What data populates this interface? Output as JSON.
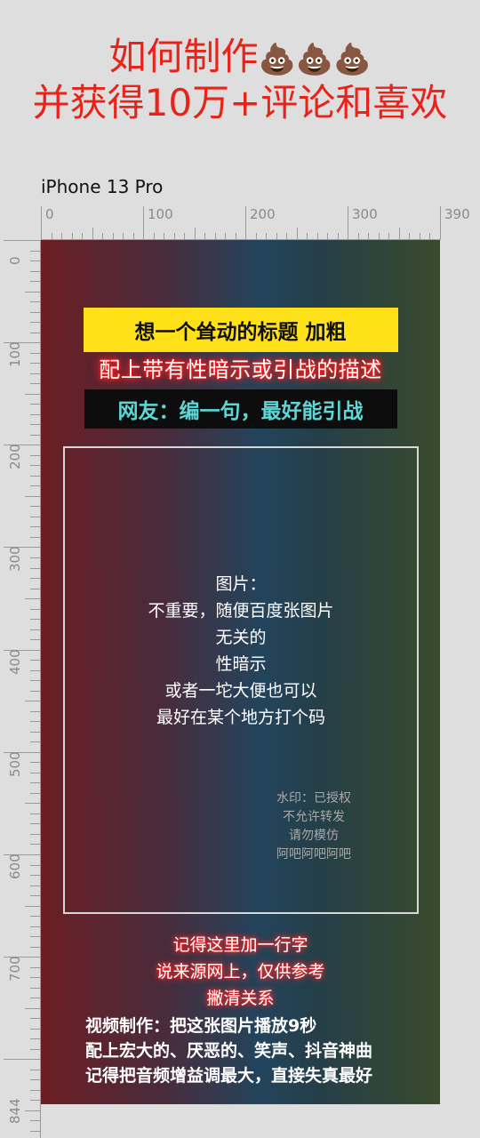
{
  "headline": {
    "line1_text": "如何制作",
    "line1_emoji": "💩💩💩",
    "line2": "并获得10万+评论和喜欢"
  },
  "device_label": "iPhone 13 Pro",
  "ruler_top": [
    "0",
    "100",
    "200",
    "300",
    "390"
  ],
  "ruler_left": [
    "0",
    "100",
    "200",
    "300",
    "400",
    "500",
    "600",
    "700",
    "844"
  ],
  "screen": {
    "title_yellow": "想一个耸动的标题 加粗",
    "subtitle_glow": "配上带有性暗示或引战的描述",
    "netizen_line": "网友：编一句，最好能引战",
    "image_desc": [
      "图片：",
      "不重要，随便百度张图片",
      "无关的",
      "性暗示",
      "或者一坨大便也可以",
      "最好在某个地方打个码"
    ],
    "watermark": [
      "水印：已授权",
      "不允许转发",
      "请勿模仿",
      "阿吧阿吧阿吧"
    ],
    "credit_note": [
      "记得这里加一行字",
      "说来源网上，仅供参考",
      "撇清关系"
    ],
    "video_tips": [
      "视频制作：把这张图片播放9秒",
      "配上宏大的、厌恶的、笑声、抖音神曲",
      "记得把音频增益调最大，直接失真最好"
    ]
  },
  "colors": {
    "headline": "#e8231a",
    "yellow_box": "#ffe11a",
    "cyan_text": "#5fd6d6",
    "glow_red": "#ff1a1a"
  }
}
